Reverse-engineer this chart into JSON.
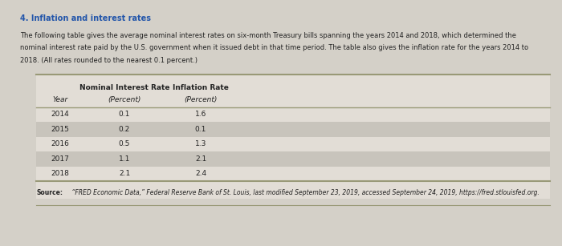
{
  "title": "4. Inflation and interest rates",
  "para_line1": "The following table gives the average nominal interest rates on six-month Treasury bills spanning the years 2014 and 2018, which determined the",
  "para_line2": "nominal interest rate paid by the U.S. government when it issued debt in that time period. The table also gives the inflation rate for the years 2014 to",
  "para_line3": "2018. (All rates rounded to the nearest 0.1 percent.)",
  "col_header_bold1": "Nominal Interest Rate",
  "col_header_bold2": "Inflation Rate",
  "col_header_italic1": "(Percent)",
  "col_header_italic2": "(Percent)",
  "col_header_year": "Year",
  "years": [
    "2014",
    "2015",
    "2016",
    "2017",
    "2018"
  ],
  "nominal_rates": [
    "0.1",
    "0.2",
    "0.5",
    "1.1",
    "2.1"
  ],
  "inflation_rates": [
    "1.6",
    "0.1",
    "1.3",
    "2.1",
    "2.4"
  ],
  "source_text": "Source: “FRED Economic Data,” Federal Reserve Bank of St. Louis, last modified September 23, 2019, accessed September 24, 2019, https://fred.stlouisfed.org.",
  "bg_color": "#d4d0c8",
  "table_area_bg": "#e2ddd6",
  "row_shaded_color": "#c8c4bc",
  "title_color": "#2255aa",
  "text_color": "#222222",
  "line_color": "#999977",
  "source_bold": "Source:"
}
